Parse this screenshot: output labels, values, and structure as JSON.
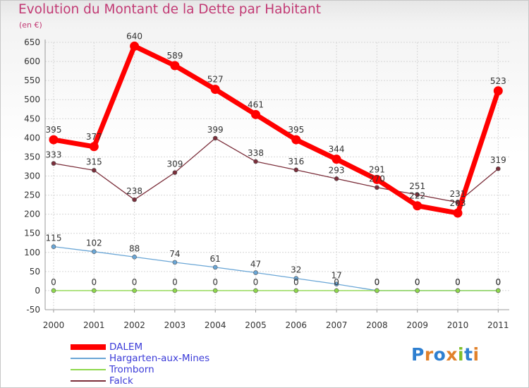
{
  "chart_data": {
    "type": "line",
    "title": "Evolution du Montant de la Dette par Habitant",
    "unit_label": "(en €)",
    "x": [
      "2000",
      "2001",
      "2002",
      "2003",
      "2004",
      "2005",
      "2006",
      "2007",
      "2008",
      "2009",
      "2010",
      "2011"
    ],
    "ylim": [
      -50,
      650
    ],
    "yticks": [
      -50,
      0,
      50,
      100,
      150,
      200,
      250,
      300,
      350,
      400,
      450,
      500,
      550,
      600,
      650
    ],
    "grid": true,
    "legend_position": "bottom-left",
    "series": [
      {
        "name": "DALEM",
        "color": "#ff0000",
        "values": [
          395,
          377,
          640,
          589,
          527,
          461,
          395,
          344,
          291,
          222,
          203,
          523
        ],
        "labels": [
          "395",
          "377",
          "640",
          "589",
          "527",
          "461",
          "395",
          "344",
          "291",
          "222",
          "203",
          "523"
        ]
      },
      {
        "name": "Hargarten-aux-Mines",
        "color": "#6aa6d6",
        "values": [
          115,
          102,
          88,
          74,
          61,
          47,
          32,
          17,
          0,
          0,
          0,
          0
        ],
        "labels": [
          "115",
          "102",
          "88",
          "74",
          "61",
          "47",
          "32",
          "17",
          "0",
          "0",
          "0",
          "0"
        ]
      },
      {
        "name": "Tromborn",
        "color": "#8ed84c",
        "values": [
          0,
          0,
          0,
          0,
          0,
          0,
          0,
          0,
          0,
          0,
          0,
          0
        ],
        "labels": [
          "0",
          "0",
          "0",
          "0",
          "0",
          "0",
          "0",
          "0",
          "0",
          "0",
          "0",
          "0"
        ]
      },
      {
        "name": "Falck",
        "color": "#7b2e3a",
        "values": [
          333,
          315,
          238,
          309,
          399,
          338,
          316,
          293,
          270,
          251,
          231,
          319
        ],
        "labels": [
          "333",
          "315",
          "238",
          "309",
          "399",
          "338",
          "316",
          "293",
          "270",
          "251",
          "231",
          "319"
        ]
      }
    ]
  },
  "logo": {
    "letters": [
      "P",
      "r",
      "o",
      "x",
      "i",
      "t",
      "i"
    ],
    "colors": [
      "#2e7fd0",
      "#e1812a",
      "#2e7fd0",
      "#e1812a",
      "#7fbf2a",
      "#2e7fd0",
      "#e1812a"
    ]
  }
}
